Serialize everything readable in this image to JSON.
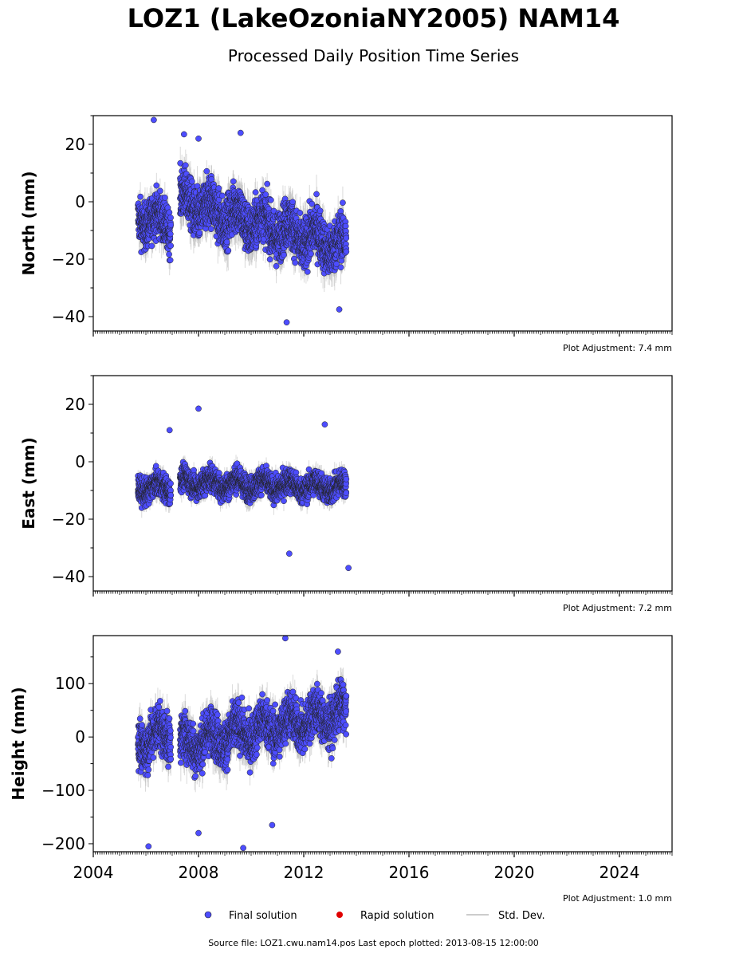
{
  "header": {
    "title": "LOZ1 (LakeOzoniaNY2005) NAM14",
    "subtitle": "Processed Daily Position Time Series"
  },
  "legend": {
    "final": "Final solution",
    "rapid": "Rapid solution",
    "std": "Std. Dev."
  },
  "footer": {
    "source": "Source file: LOZ1.cwu.nam14.pos  Last epoch plotted: 2013-08-15 12:00:00"
  },
  "colors": {
    "final": "#4d4dff",
    "rapid": "#e00000",
    "std": "#bbbbbb"
  },
  "chart_data": [
    {
      "type": "scatter",
      "ylabel": "North (mm)",
      "adjustment": "Plot Adjustment: 7.4 mm",
      "xlim": [
        2004,
        2026
      ],
      "ylim": [
        -45,
        30
      ],
      "yticks": [
        -40,
        -20,
        0,
        20
      ],
      "yticklabels": [
        "−40",
        "−20",
        "0",
        "20"
      ],
      "segments": [
        {
          "start": 2005.7,
          "end": 2006.95,
          "trend": [
            -5,
            -8
          ],
          "spread": 7
        },
        {
          "start": 2007.3,
          "end": 2013.62,
          "trend": [
            0,
            -16
          ],
          "spread": 8
        }
      ],
      "outliers": [
        [
          2006.3,
          28.5
        ],
        [
          2007.45,
          23.5
        ],
        [
          2009.6,
          24
        ],
        [
          2011.35,
          -42
        ],
        [
          2008.0,
          22
        ],
        [
          2013.35,
          -37.5
        ]
      ]
    },
    {
      "type": "scatter",
      "ylabel": "East (mm)",
      "adjustment": "Plot Adjustment: 7.2 mm",
      "xlim": [
        2004,
        2026
      ],
      "ylim": [
        -45,
        30
      ],
      "yticks": [
        -40,
        -20,
        0,
        20
      ],
      "yticklabels": [
        "−40",
        "−20",
        "0",
        "20"
      ],
      "segments": [
        {
          "start": 2005.7,
          "end": 2006.95,
          "trend": [
            -9,
            -9
          ],
          "spread": 4
        },
        {
          "start": 2007.3,
          "end": 2013.62,
          "trend": [
            -7,
            -9
          ],
          "spread": 4
        }
      ],
      "outliers": [
        [
          2008.0,
          18.5
        ],
        [
          2006.9,
          11
        ],
        [
          2012.8,
          13
        ],
        [
          2013.7,
          -37
        ],
        [
          2011.45,
          -32
        ]
      ]
    },
    {
      "type": "scatter",
      "ylabel": "Height (mm)",
      "adjustment": "Plot Adjustment: 1.0 mm",
      "xlim": [
        2004,
        2026
      ],
      "ylim": [
        -215,
        190
      ],
      "yticks": [
        -200,
        -100,
        0,
        100
      ],
      "yticklabels": [
        "−200",
        "−100",
        "0",
        "100"
      ],
      "xticks": [
        2004,
        2008,
        2012,
        2016,
        2020,
        2024
      ],
      "xticklabels": [
        "2004",
        "2008",
        "2012",
        "2016",
        "2020",
        "2024"
      ],
      "segments": [
        {
          "start": 2005.7,
          "end": 2006.95,
          "trend": [
            -10,
            10
          ],
          "spread": 40
        },
        {
          "start": 2007.3,
          "end": 2013.62,
          "trend": [
            -15,
            45
          ],
          "spread": 40
        }
      ],
      "outliers": [
        [
          2011.3,
          185
        ],
        [
          2009.7,
          -208
        ],
        [
          2006.1,
          -205
        ],
        [
          2010.8,
          -165
        ],
        [
          2013.3,
          160
        ],
        [
          2008.0,
          -180
        ]
      ]
    }
  ]
}
